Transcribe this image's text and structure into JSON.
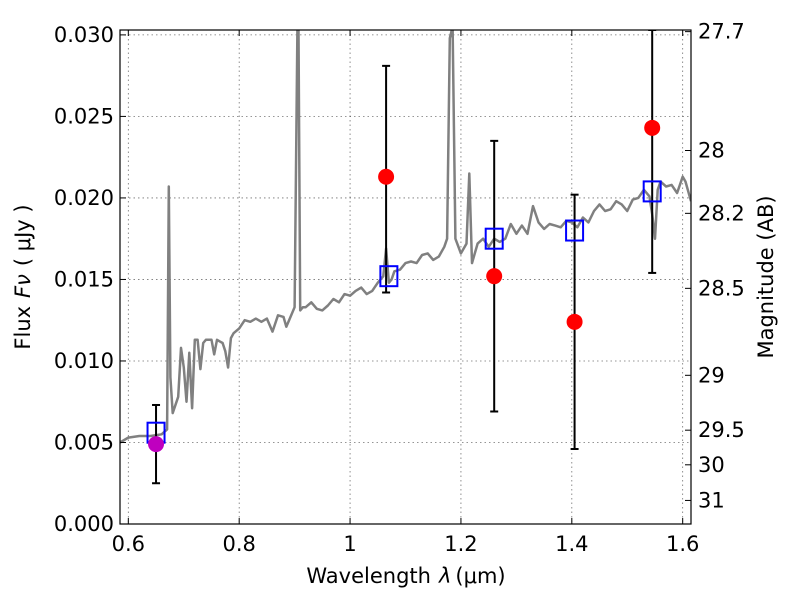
{
  "chart_data": {
    "type": "line",
    "xlabel_prefix": "Wavelength",
    "xlabel_symbol": "λ",
    "xlabel_units": "(μm)",
    "ylabel_prefix": "Flux",
    "ylabel_symbol": "Fν",
    "ylabel_units": "( μJy )",
    "y2label": "Magnitude (AB)",
    "xlim": [
      0.585,
      1.615
    ],
    "ylim": [
      0.0,
      0.0303
    ],
    "x_ticks": [
      0.6,
      0.8,
      1.0,
      1.2,
      1.4,
      1.6
    ],
    "x_tick_labels": [
      "0.6",
      "0.8",
      "1",
      "1.2",
      "1.4",
      "1.6"
    ],
    "y_ticks": [
      0.0,
      0.005,
      0.01,
      0.015,
      0.02,
      0.025,
      0.03
    ],
    "y_tick_labels": [
      "0.000",
      "0.005",
      "0.010",
      "0.015",
      "0.020",
      "0.025",
      "0.030"
    ],
    "mag_ticks": [
      27.7,
      28,
      28.2,
      28.5,
      29,
      29.5,
      30,
      31
    ],
    "mag_tick_labels": [
      "27.7",
      "28",
      "28.2",
      "28.5",
      "29",
      "29.5",
      "30",
      "31"
    ],
    "grid": true,
    "series": [
      {
        "name": "model spectrum",
        "color": "#808080",
        "x": [
          0.585,
          0.6,
          0.62,
          0.64,
          0.66,
          0.67,
          0.673,
          0.676,
          0.68,
          0.69,
          0.695,
          0.7,
          0.705,
          0.71,
          0.715,
          0.72,
          0.725,
          0.73,
          0.735,
          0.74,
          0.745,
          0.75,
          0.755,
          0.76,
          0.765,
          0.77,
          0.775,
          0.78,
          0.785,
          0.79,
          0.8,
          0.81,
          0.82,
          0.83,
          0.84,
          0.85,
          0.86,
          0.87,
          0.88,
          0.885,
          0.89,
          0.9,
          0.905,
          0.907,
          0.91,
          0.915,
          0.92,
          0.93,
          0.94,
          0.95,
          0.96,
          0.97,
          0.98,
          0.99,
          1.0,
          1.01,
          1.02,
          1.03,
          1.04,
          1.05,
          1.06,
          1.065,
          1.07,
          1.075,
          1.08,
          1.09,
          1.1,
          1.11,
          1.12,
          1.13,
          1.14,
          1.15,
          1.16,
          1.17,
          1.175,
          1.18,
          1.185,
          1.19,
          1.2,
          1.21,
          1.215,
          1.22,
          1.23,
          1.24,
          1.25,
          1.26,
          1.27,
          1.28,
          1.29,
          1.3,
          1.31,
          1.32,
          1.33,
          1.34,
          1.35,
          1.36,
          1.37,
          1.38,
          1.39,
          1.4,
          1.41,
          1.42,
          1.43,
          1.44,
          1.45,
          1.46,
          1.47,
          1.48,
          1.49,
          1.5,
          1.51,
          1.52,
          1.53,
          1.54,
          1.545,
          1.55,
          1.555,
          1.56,
          1.57,
          1.58,
          1.59,
          1.6,
          1.605,
          1.615
        ],
        "y": [
          0.005,
          0.0053,
          0.0054,
          0.0054,
          0.0055,
          0.0058,
          0.0207,
          0.009,
          0.0068,
          0.0078,
          0.0108,
          0.0096,
          0.0075,
          0.0105,
          0.0071,
          0.0113,
          0.0113,
          0.0095,
          0.0111,
          0.0113,
          0.0113,
          0.0113,
          0.0104,
          0.0113,
          0.0112,
          0.0111,
          0.0106,
          0.0096,
          0.0114,
          0.0117,
          0.012,
          0.0125,
          0.0124,
          0.0126,
          0.0124,
          0.0126,
          0.0118,
          0.0128,
          0.0127,
          0.0121,
          0.0125,
          0.0133,
          0.0303,
          0.0303,
          0.0131,
          0.0133,
          0.0133,
          0.0136,
          0.0132,
          0.0131,
          0.0134,
          0.0138,
          0.0136,
          0.0141,
          0.014,
          0.0143,
          0.0145,
          0.0141,
          0.0143,
          0.0148,
          0.0152,
          0.0169,
          0.0148,
          0.015,
          0.0155,
          0.0156,
          0.016,
          0.0161,
          0.016,
          0.0165,
          0.0166,
          0.0162,
          0.0164,
          0.017,
          0.0175,
          0.0298,
          0.0305,
          0.0175,
          0.0166,
          0.0172,
          0.0215,
          0.016,
          0.0172,
          0.0175,
          0.017,
          0.0175,
          0.0173,
          0.0175,
          0.0184,
          0.0178,
          0.0183,
          0.0178,
          0.0195,
          0.0185,
          0.0181,
          0.0184,
          0.0183,
          0.0182,
          0.0186,
          0.0185,
          0.0182,
          0.0188,
          0.0185,
          0.0192,
          0.0196,
          0.0192,
          0.0193,
          0.0198,
          0.0196,
          0.0192,
          0.0199,
          0.02,
          0.0205,
          0.0201,
          0.019,
          0.0175,
          0.0205,
          0.021,
          0.0207,
          0.0208,
          0.0203,
          0.0213,
          0.021,
          0.0198
        ]
      },
      {
        "name": "observed flux (red points)",
        "color": "#ff0000",
        "points": [
          {
            "x": 1.065,
            "y": 0.0213,
            "ylo": 0.0142,
            "yhi": 0.0281
          },
          {
            "x": 1.26,
            "y": 0.0152,
            "ylo": 0.0069,
            "yhi": 0.0235
          },
          {
            "x": 1.405,
            "y": 0.0124,
            "ylo": 0.0046,
            "yhi": 0.0202
          },
          {
            "x": 1.545,
            "y": 0.0243,
            "ylo": 0.0154,
            "yhi": 0.0303
          }
        ]
      },
      {
        "name": "observed flux (magenta point)",
        "color": "#bf00bf",
        "points": [
          {
            "x": 0.65,
            "y": 0.0049,
            "ylo": 0.0025,
            "yhi": 0.0073
          }
        ]
      },
      {
        "name": "model band flux (open squares)",
        "color": "#0000ff",
        "points": [
          {
            "x": 0.65,
            "y": 0.0056
          },
          {
            "x": 1.07,
            "y": 0.0152
          },
          {
            "x": 1.26,
            "y": 0.0175
          },
          {
            "x": 1.405,
            "y": 0.018
          },
          {
            "x": 1.545,
            "y": 0.0204
          }
        ]
      }
    ]
  }
}
